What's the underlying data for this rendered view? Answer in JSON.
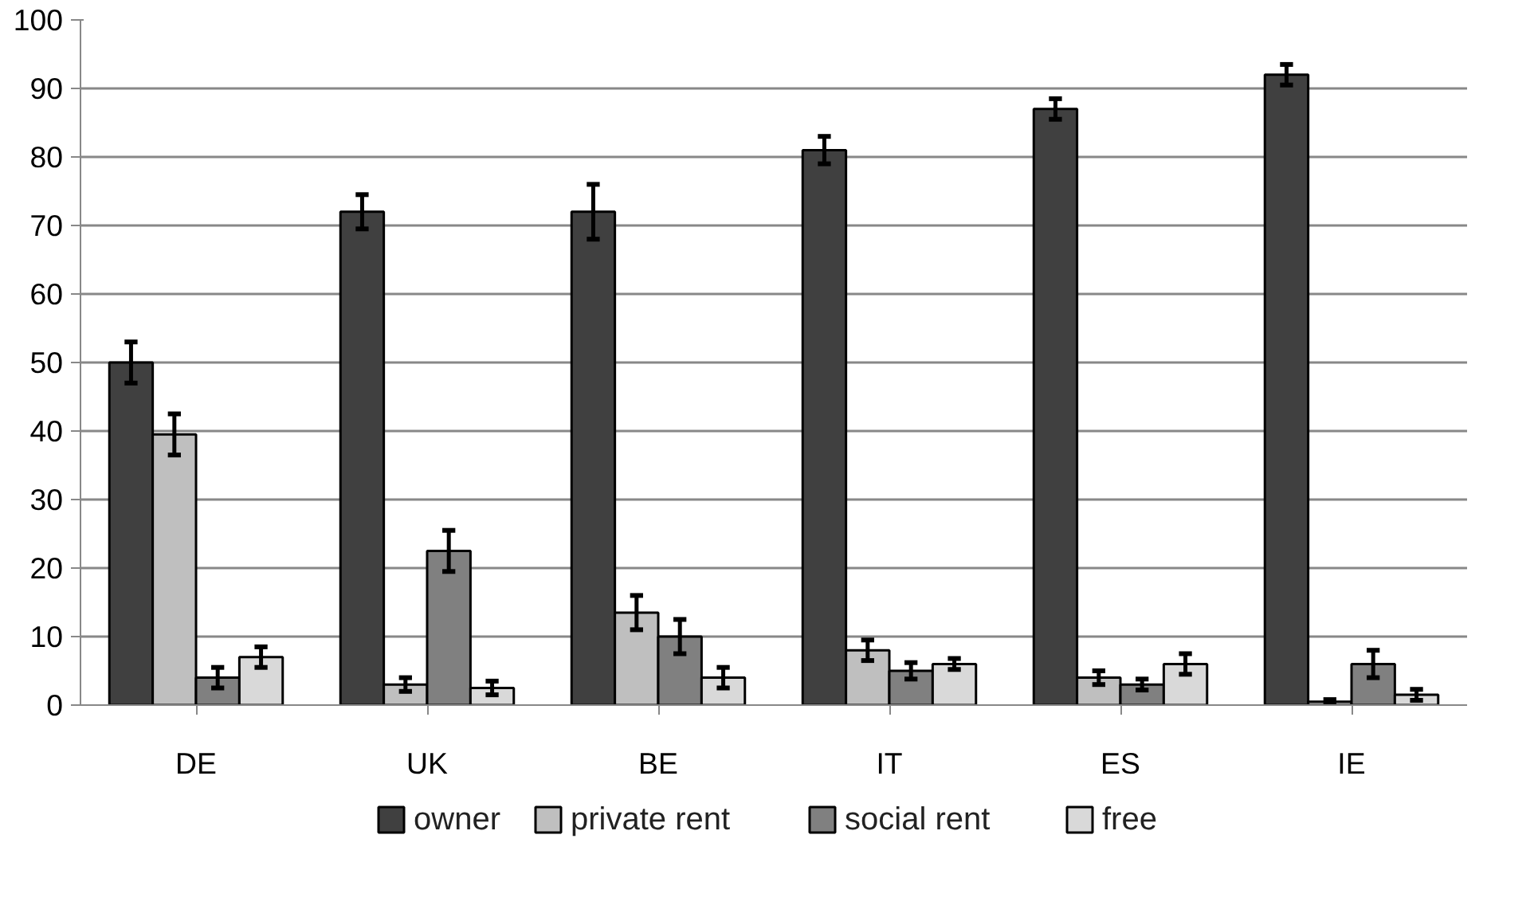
{
  "chart_data": {
    "type": "bar",
    "categories": [
      "DE",
      "UK",
      "BE",
      "IT",
      "ES",
      "IE"
    ],
    "series": [
      {
        "name": "owner",
        "color": "#404040",
        "values": [
          50,
          72,
          72,
          81,
          87,
          92
        ],
        "errors": [
          3,
          2.5,
          4,
          2,
          1.5,
          1.5
        ]
      },
      {
        "name": "private rent",
        "color": "#bfbfbf",
        "values": [
          39.5,
          3,
          13.5,
          8,
          4,
          0.5
        ],
        "errors": [
          3,
          1,
          2.5,
          1.5,
          1,
          0.3
        ]
      },
      {
        "name": "social rent",
        "color": "#808080",
        "values": [
          4,
          22.5,
          10,
          5,
          3,
          6
        ],
        "errors": [
          1.5,
          3,
          2.5,
          1.2,
          0.8,
          2
        ]
      },
      {
        "name": "free",
        "color": "#d9d9d9",
        "values": [
          7,
          2.5,
          4,
          6,
          6,
          1.5
        ],
        "errors": [
          1.5,
          1,
          1.5,
          0.8,
          1.5,
          0.8
        ]
      }
    ],
    "ylim": [
      0,
      100
    ],
    "yticks": [
      0,
      10,
      20,
      30,
      40,
      50,
      60,
      70,
      80,
      90,
      100
    ],
    "grid": "y",
    "legend": "bottom"
  }
}
